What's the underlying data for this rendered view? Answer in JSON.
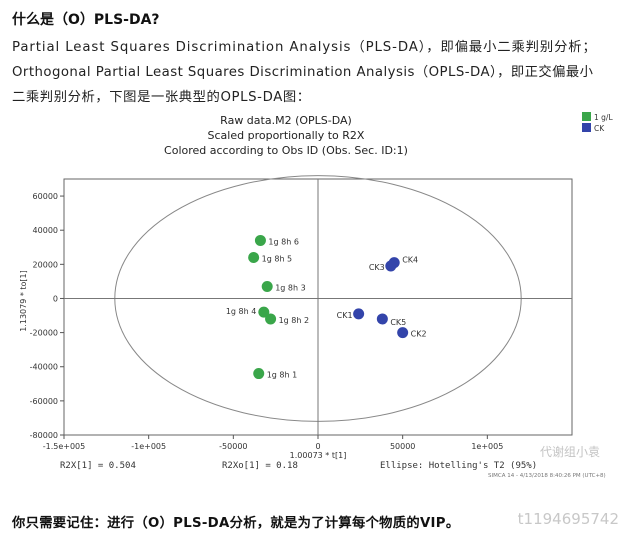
{
  "heading": "什么是（O）PLS-DA?",
  "paragraph_line1": "Partial Least Squares Discrimination Analysis（PLS-DA），即偏最小二乘判别分析；",
  "paragraph_line2": "Orthogonal Partial Least Squares Discrimination Analysis（OPLS-DA），即正交偏最小",
  "paragraph_line3": "二乘判别分析，下图是一张典型的OPLS-DA图：",
  "footer": "你只需要记住：进行（O）PLS-DA分析，就是为了计算每个物质的VIP。",
  "bottom_watermark": "t1194695742",
  "chart_data": {
    "type": "scatter",
    "title": "Raw data.M2 (OPLS-DA)",
    "subtitle1": "Scaled proportionally to R2X",
    "subtitle2": "Colored according to Obs ID (Obs. Sec. ID:1)",
    "xlabel": "1.00073 * t[1]",
    "ylabel": "1.13079 * to[1]",
    "xlim": [
      -150000,
      150000
    ],
    "ylim": [
      -80000,
      70000
    ],
    "x_ticks": [
      -150000,
      -100000,
      -50000,
      0,
      50000,
      100000
    ],
    "x_tick_labels": [
      "-1.5e+005",
      "-1e+005",
      "-50000",
      "0",
      "50000",
      "1e+005"
    ],
    "y_ticks": [
      60000,
      40000,
      20000,
      0,
      -20000,
      -40000,
      -60000,
      -80000
    ],
    "y_tick_labels": [
      "60000",
      "40000",
      "20000",
      "0",
      "-20000",
      "-40000",
      "-60000",
      "-80000"
    ],
    "grid": false,
    "legend_position": "top-right",
    "ellipse": {
      "cx": 0,
      "cy": 0,
      "rx": 120000,
      "ry": 72000
    },
    "series": [
      {
        "name": "1 g/L",
        "color": "#3aa64a",
        "points": [
          {
            "label": "1g 8h 6",
            "x": -34000,
            "y": 34000
          },
          {
            "label": "1g 8h 5",
            "x": -38000,
            "y": 24000
          },
          {
            "label": "1g 8h 3",
            "x": -30000,
            "y": 7000
          },
          {
            "label": "1g 8h 4",
            "x": -32000,
            "y": -8000
          },
          {
            "label": "1g 8h 2",
            "x": -28000,
            "y": -12000
          },
          {
            "label": "1g 8h 1",
            "x": -35000,
            "y": -44000
          }
        ]
      },
      {
        "name": "CK",
        "color": "#3344aa",
        "points": [
          {
            "label": "CK4",
            "x": 45000,
            "y": 21000
          },
          {
            "label": "CK3",
            "x": 43000,
            "y": 19000
          },
          {
            "label": "CK1",
            "x": 24000,
            "y": -9000
          },
          {
            "label": "CK5",
            "x": 38000,
            "y": -12000
          },
          {
            "label": "CK2",
            "x": 50000,
            "y": -20000
          }
        ]
      }
    ],
    "stats": {
      "r2x": "R2X[1] = 0.504",
      "r2xo": "R2Xo[1] = 0.18",
      "ellipse_note": "Ellipse: Hotelling's T2 (95%)",
      "software": "SIMCA 14 - 4/13/2018 8:40:26 PM (UTC+8)"
    },
    "watermark": "代谢组小袁"
  }
}
